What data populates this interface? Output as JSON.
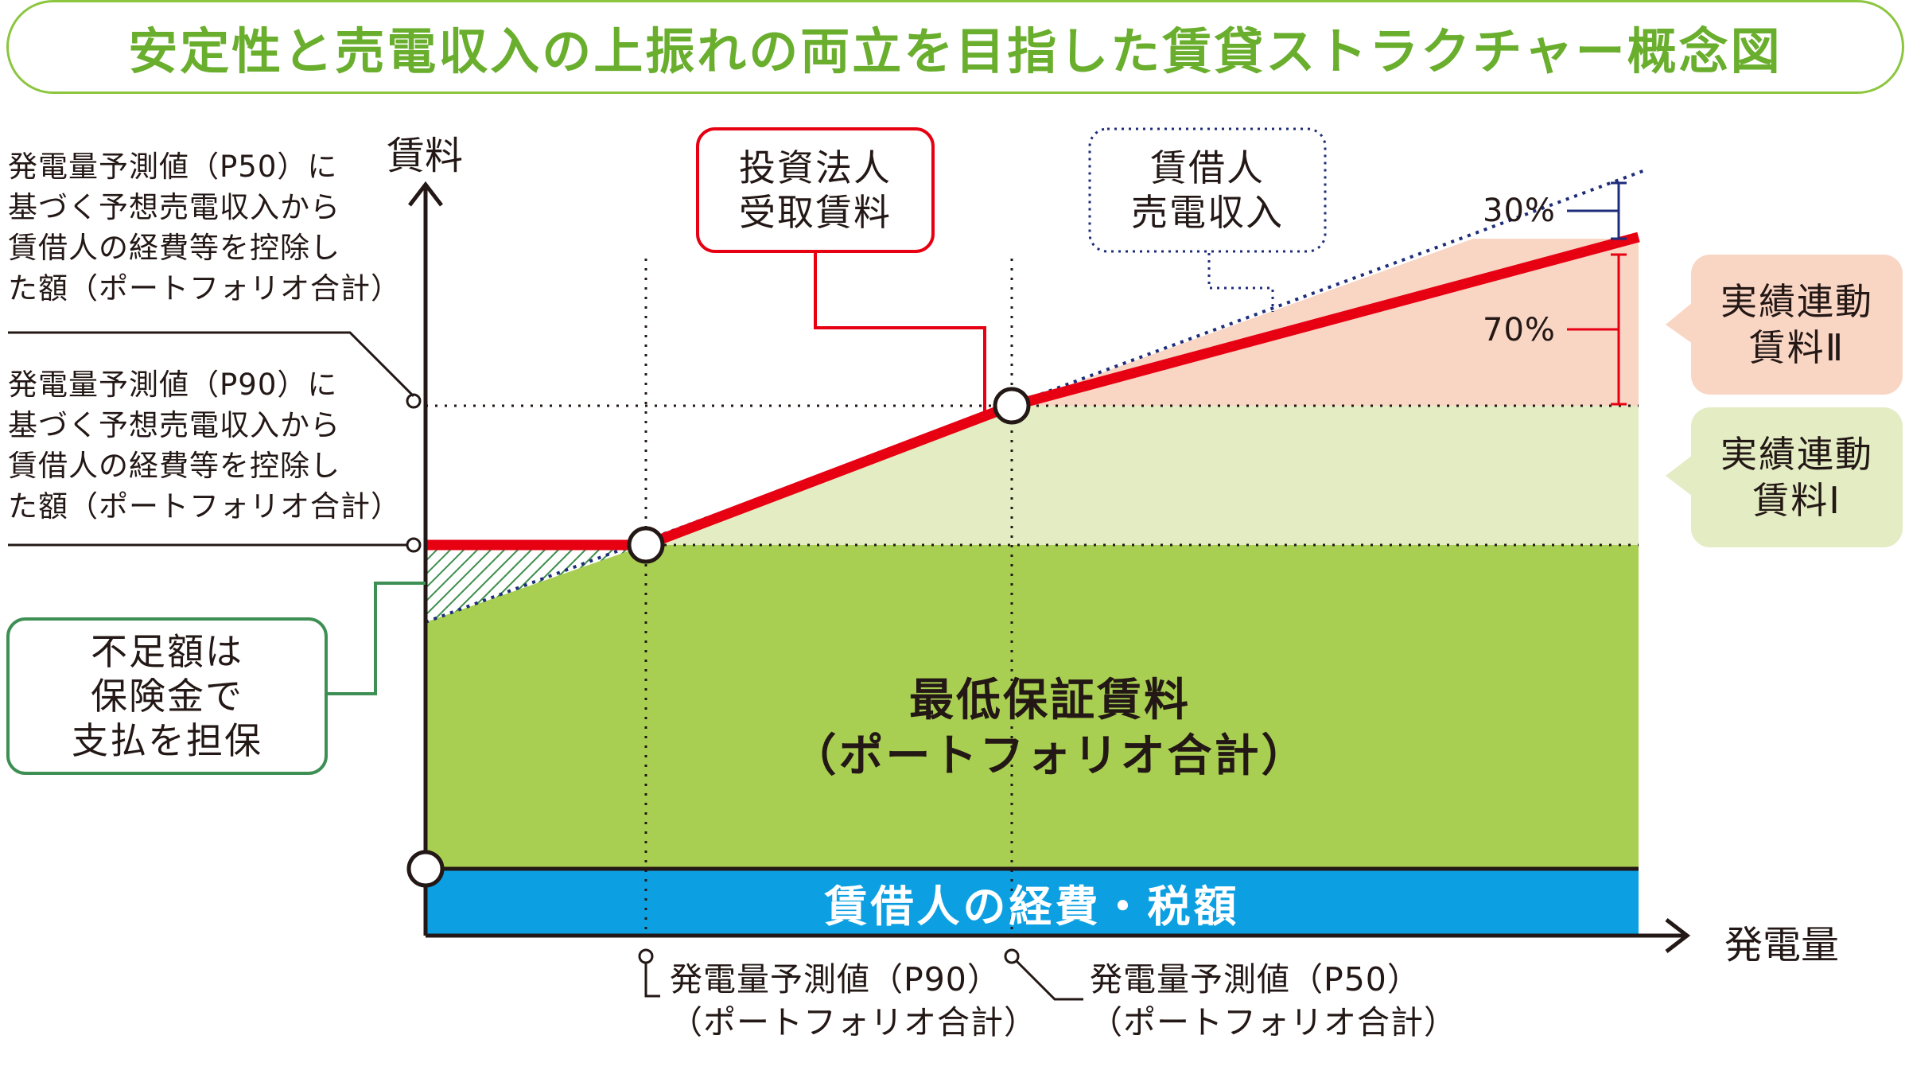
{
  "title": "安定性と売電収入の上振れの両立を目指した賃貸ストラクチャー概念図",
  "axes": {
    "y_label": "賃料",
    "x_label": "発電量"
  },
  "left_notes": {
    "p50_lines": [
      "発電量予測値（P50）に",
      "基づく予想売電収入から",
      "賃借人の経費等を控除し",
      "た額（ポートフォリオ合計）"
    ],
    "p90_lines": [
      "発電量予測値（P90）に",
      "基づく予想売電収入から",
      "賃借人の経費等を控除し",
      "た額（ポートフォリオ合計）"
    ]
  },
  "callouts": {
    "investor_lines": [
      "投資法人",
      "受取賃料"
    ],
    "lessee_lines": [
      "賃借人",
      "売電収入"
    ],
    "shortfall_lines": [
      "不足額は",
      "保険金で",
      "支払を担保"
    ]
  },
  "side_labels": {
    "rent2_lines": [
      "実績連動",
      "賃料Ⅱ"
    ],
    "rent1_lines": [
      "実績連動",
      "賃料Ⅰ"
    ]
  },
  "percentages": {
    "upper": "30%",
    "lower": "70%"
  },
  "regions": {
    "minimum_rent_lines": [
      "最低保証賃料",
      "（ポートフォリオ合計）"
    ],
    "expenses": "賃借人の経費・税額"
  },
  "bottom_labels": {
    "p90_lines": [
      "発電量予測値（P90）",
      "（ポートフォリオ合計）"
    ],
    "p50_lines": [
      "発電量予測値（P50）",
      "（ポートフォリオ合計）"
    ]
  },
  "colors": {
    "title_green": "#6aae2e",
    "title_border": "#8cc63f",
    "minimum_rent_fill": "#a9cf52",
    "rent1_fill": "#e3ecc3",
    "rent2_fill": "#f9d5c4",
    "expenses_band": "#0ca0e2",
    "rent_line_red": "#e60012",
    "revenue_line_navy": "#1d2d7a",
    "shortfall_box_border": "#3e8f54",
    "hatch_green": "#3f8e4e"
  }
}
